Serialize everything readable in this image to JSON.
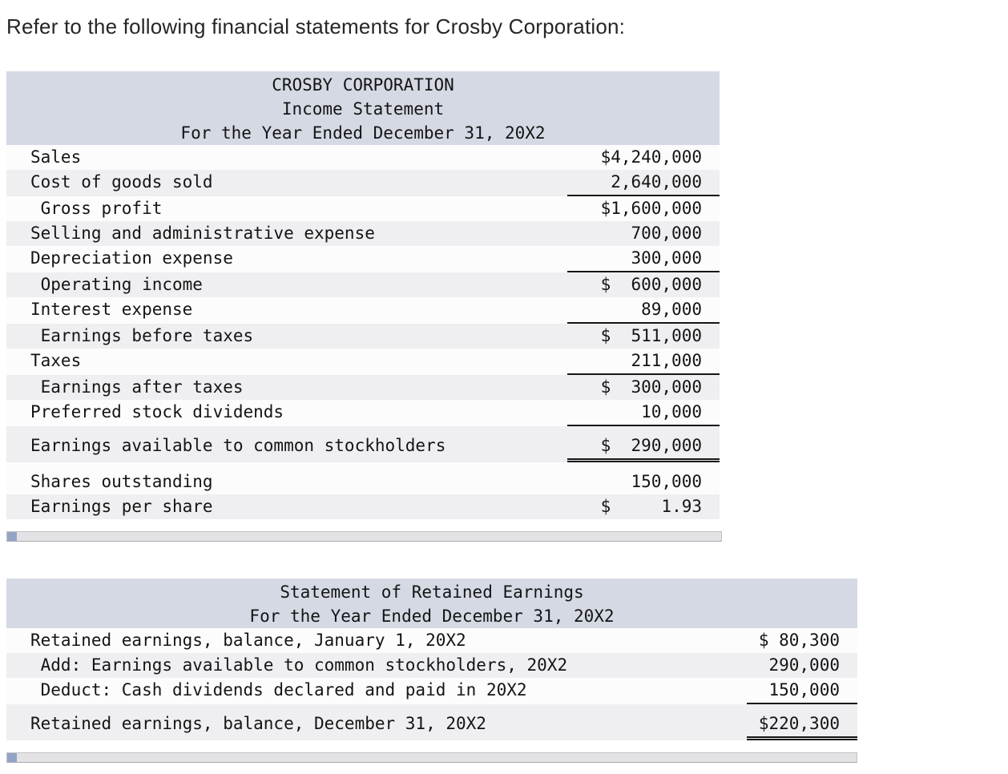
{
  "intro": {
    "text": "Refer to the following financial statements for Crosby Corporation:"
  },
  "income_statement": {
    "header": [
      "CROSBY CORPORATION",
      "Income Statement",
      "For the Year Ended December 31, 20X2"
    ],
    "rows": [
      {
        "label": "Sales",
        "amount": "$4,240,000"
      },
      {
        "label": "Cost of goods sold",
        "amount": "2,640,000"
      },
      {
        "label": " Gross profit",
        "amount": "$1,600,000"
      },
      {
        "label": "Selling and administrative expense",
        "amount": "700,000"
      },
      {
        "label": "Depreciation expense",
        "amount": "300,000"
      },
      {
        "label": " Operating income",
        "amount": "$  600,000"
      },
      {
        "label": "Interest expense",
        "amount": "89,000"
      },
      {
        "label": " Earnings before taxes",
        "amount": "$  511,000"
      },
      {
        "label": "Taxes",
        "amount": "211,000"
      },
      {
        "label": " Earnings after taxes",
        "amount": "$  300,000"
      },
      {
        "label": "Preferred stock dividends",
        "amount": "10,000"
      },
      {
        "label": "Earnings available to common stockholders",
        "amount": "$  290,000"
      },
      {
        "label": "Shares outstanding",
        "amount": "150,000"
      },
      {
        "label": "Earnings per share",
        "amount": "$     1.93"
      }
    ]
  },
  "retained_earnings": {
    "header": [
      "Statement of Retained Earnings",
      "For the Year Ended December 31, 20X2"
    ],
    "rows": [
      {
        "label": "Retained earnings, balance, January 1, 20X2",
        "amount": "$ 80,300"
      },
      {
        "label": " Add: Earnings available to common stockholders, 20X2",
        "amount": "290,000"
      },
      {
        "label": " Deduct: Cash dividends declared and paid in 20X2",
        "amount": "150,000"
      },
      {
        "label": "Retained earnings, balance, December 31, 20X2",
        "amount": "$220,300"
      }
    ]
  }
}
